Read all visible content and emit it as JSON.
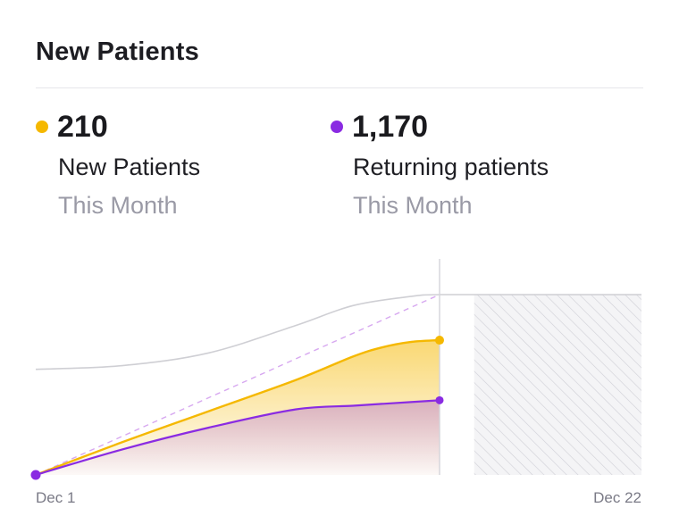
{
  "card": {
    "title": "New Patients"
  },
  "stats": [
    {
      "value": "210",
      "label": "New Patients",
      "period": "This Month",
      "color": "#F5B800"
    },
    {
      "value": "1,170",
      "label": "Returning patients",
      "period": "This Month",
      "color": "#8A2BE2"
    }
  ],
  "chart_data": {
    "type": "area",
    "x_labels": [
      "Dec 1",
      "Dec 22"
    ],
    "x_range": [
      1,
      22
    ],
    "ylim": [
      0,
      1
    ],
    "current_day": 15,
    "series": [
      {
        "name": "New Patients",
        "color": "#F5B800",
        "x": [
          1,
          4,
          7,
          10,
          12,
          13,
          14,
          15
        ],
        "y": [
          0,
          0.18,
          0.35,
          0.52,
          0.65,
          0.7,
          0.73,
          0.74
        ]
      },
      {
        "name": "Returning patients",
        "color": "#8A2BE2",
        "x": [
          1,
          4,
          7,
          10,
          12,
          13,
          14,
          15
        ],
        "y": [
          0,
          0.14,
          0.26,
          0.36,
          0.38,
          0.39,
          0.4,
          0.41
        ]
      },
      {
        "color": "#cfcfd4",
        "x": [
          1,
          4,
          7,
          10,
          12,
          14,
          15,
          18,
          22
        ],
        "y": [
          0.58,
          0.6,
          0.67,
          0.82,
          0.93,
          0.98,
          0.99,
          0.99,
          0.99
        ]
      },
      {
        "color": "#d7a8f0",
        "x": [
          1,
          15
        ],
        "y": [
          0,
          0.99
        ]
      }
    ],
    "forecast_region": [
      16.2,
      22
    ],
    "grid": false
  }
}
